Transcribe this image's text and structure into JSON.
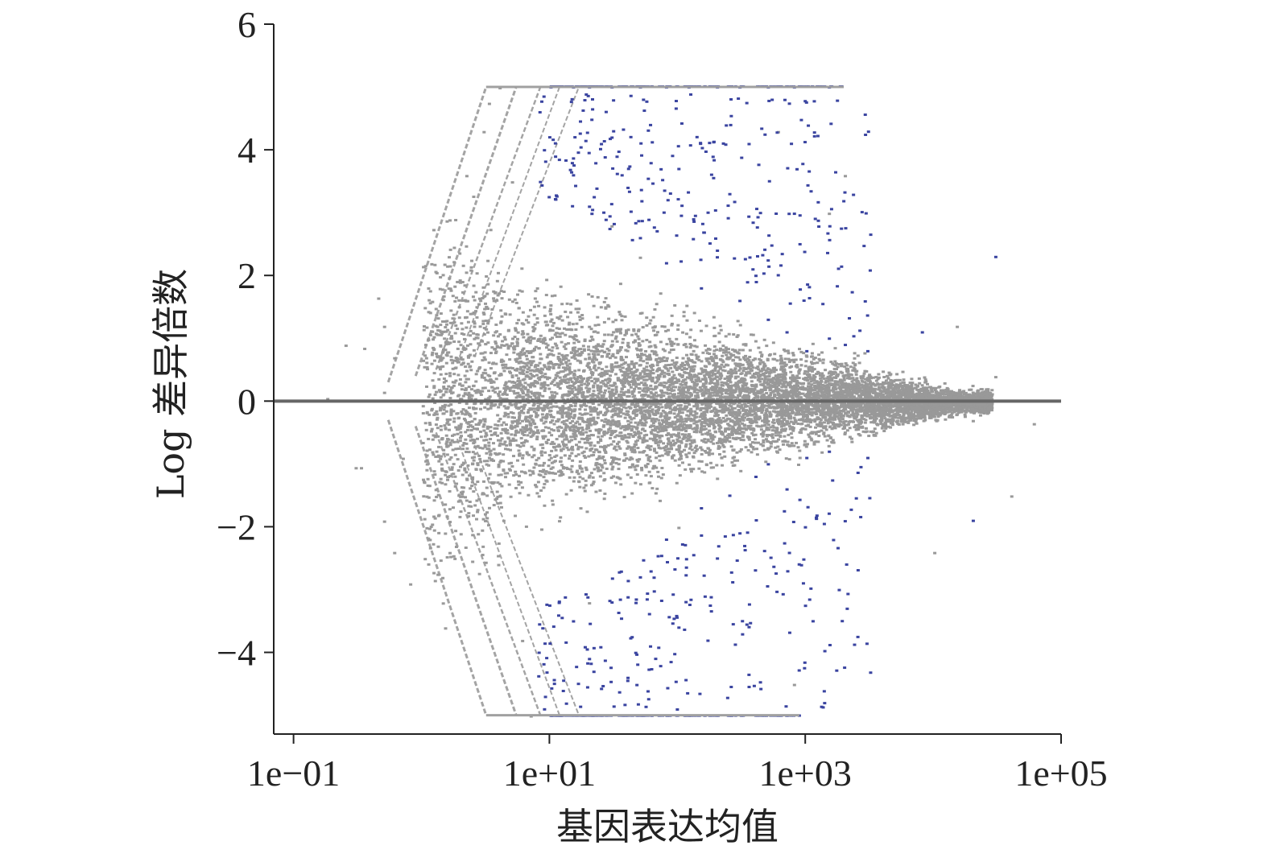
{
  "chart_data": {
    "type": "scatter",
    "title": "",
    "xlabel": "基因表达均值",
    "ylabel": "Log 差异倍数",
    "x_scale": "log10",
    "xlim": [
      0.07,
      100000
    ],
    "ylim": [
      -5.3,
      6
    ],
    "x_ticks": [
      0.1,
      10,
      1000,
      100000
    ],
    "x_tick_labels": [
      "1e−01",
      "1e+01",
      "1e+03",
      "1e+05"
    ],
    "y_ticks": [
      -4,
      -2,
      0,
      2,
      4,
      6
    ],
    "y_tick_labels": [
      "−4",
      "−2",
      "0",
      "2",
      "4",
      "6"
    ],
    "reference_line_y": 0,
    "cap_values": [
      5,
      -5
    ],
    "grid": false,
    "legend": "none",
    "colors": {
      "not_significant": "#999999",
      "significant": "#3a44a0",
      "reference_line": "#666666",
      "axis": "#222222"
    },
    "series": [
      {
        "color": "#999999",
        "points": [
          [
            0.25,
            0.9
          ],
          [
            0.35,
            0.85
          ],
          [
            0.3,
            -1.05
          ],
          [
            0.33,
            -1.05
          ],
          [
            0.45,
            1.65
          ],
          [
            0.5,
            1.2
          ],
          [
            0.6,
            0.7
          ],
          [
            0.7,
            -0.9
          ],
          [
            0.5,
            -1.9
          ],
          [
            0.6,
            -2.4
          ],
          [
            0.8,
            -2.9
          ],
          [
            1.5,
            -3.6
          ],
          [
            1.8,
            2.9
          ],
          [
            2.2,
            3.6
          ],
          [
            3.0,
            4.3
          ],
          [
            3.3,
            4.75
          ],
          [
            1.2,
            1.0
          ],
          [
            1.5,
            -1.1
          ],
          [
            2.0,
            0.8
          ],
          [
            2.5,
            -0.6
          ],
          [
            3.0,
            1.4
          ],
          [
            4.0,
            -1.3
          ],
          [
            5.0,
            0.4
          ],
          [
            6.0,
            -0.5
          ],
          [
            8.0,
            1.0
          ],
          [
            9.0,
            -0.8
          ],
          [
            12.0,
            0.3
          ],
          [
            15.0,
            -0.4
          ],
          [
            20.0,
            1.2
          ],
          [
            25.0,
            -1.0
          ],
          [
            30.0,
            0.6
          ],
          [
            40.0,
            -0.3
          ],
          [
            60.0,
            0.5
          ],
          [
            80.0,
            -0.7
          ],
          [
            100.0,
            0.2
          ],
          [
            150.0,
            -0.2
          ],
          [
            200.0,
            0.4
          ],
          [
            300.0,
            -0.5
          ],
          [
            500.0,
            0.3
          ],
          [
            700.0,
            -0.3
          ],
          [
            1000.0,
            0.2
          ],
          [
            1500.0,
            -0.2
          ],
          [
            2000.0,
            0.3
          ],
          [
            3000.0,
            -0.15
          ],
          [
            5000.0,
            0.1
          ],
          [
            8000.0,
            -0.1
          ],
          [
            12000.0,
            0.3
          ],
          [
            20000.0,
            -0.3
          ],
          [
            30000.0,
            0.4
          ],
          [
            60000.0,
            -0.35
          ],
          [
            40000.0,
            -1.5
          ],
          [
            15000.0,
            1.2
          ],
          [
            10000.0,
            -2.4
          ],
          [
            2000.0,
            3.6
          ],
          [
            1500.0,
            3.0
          ],
          [
            600.0,
            4.3
          ],
          [
            800.0,
            -4.5
          ],
          [
            4.0,
            5.0
          ],
          [
            7.0,
            -5.0
          ],
          [
            20.0,
            -3.2
          ],
          [
            30.0,
            2.8
          ],
          [
            5.0,
            3.5
          ],
          [
            6.0,
            -3.8
          ],
          [
            100.0,
            -2.0
          ],
          [
            50.0,
            2.3
          ],
          [
            0.18,
            0.05
          ],
          [
            0.5,
            0.15
          ],
          [
            2.0,
            -0.15
          ]
        ]
      },
      {
        "color": "#3a44a0",
        "points": [
          [
            10.0,
            5.0
          ],
          [
            15.0,
            5.0
          ],
          [
            20.0,
            5.0
          ],
          [
            30.0,
            5.0
          ],
          [
            50.0,
            5.0
          ],
          [
            80.0,
            5.0
          ],
          [
            120.0,
            5.0
          ],
          [
            200.0,
            5.0
          ],
          [
            300.0,
            5.0
          ],
          [
            500.0,
            5.0
          ],
          [
            800.0,
            5.0
          ],
          [
            1500.0,
            5.0
          ],
          [
            10.0,
            -5.0
          ],
          [
            15.0,
            -5.0
          ],
          [
            25.0,
            -5.0
          ],
          [
            40.0,
            -5.0
          ],
          [
            70.0,
            -5.0
          ],
          [
            120.0,
            -5.0
          ],
          [
            200.0,
            -5.0
          ],
          [
            400.0,
            -5.0
          ],
          [
            700.0,
            -5.0
          ],
          [
            15.0,
            3.6
          ],
          [
            20.0,
            3.1
          ],
          [
            30.0,
            4.2
          ],
          [
            40.0,
            3.4
          ],
          [
            50.0,
            2.6
          ],
          [
            60.0,
            4.4
          ],
          [
            80.0,
            2.2
          ],
          [
            100.0,
            3.7
          ],
          [
            150.0,
            1.8
          ],
          [
            200.0,
            2.4
          ],
          [
            250.0,
            3.3
          ],
          [
            300.0,
            1.6
          ],
          [
            400.0,
            2.0
          ],
          [
            500.0,
            1.3
          ],
          [
            700.0,
            1.1
          ],
          [
            1000.0,
            0.8
          ],
          [
            1500.0,
            1.0
          ],
          [
            2000.0,
            0.9
          ],
          [
            3000.0,
            0.8
          ],
          [
            8000.0,
            1.1
          ],
          [
            30000.0,
            2.3
          ],
          [
            15.0,
            -3.5
          ],
          [
            20.0,
            -4.1
          ],
          [
            30.0,
            -3.2
          ],
          [
            40.0,
            -4.4
          ],
          [
            50.0,
            -2.8
          ],
          [
            60.0,
            -3.9
          ],
          [
            80.0,
            -2.2
          ],
          [
            100.0,
            -3.6
          ],
          [
            150.0,
            -1.7
          ],
          [
            200.0,
            -2.5
          ],
          [
            250.0,
            -1.5
          ],
          [
            300.0,
            -2.1
          ],
          [
            400.0,
            -1.2
          ],
          [
            500.0,
            -1.0
          ],
          [
            700.0,
            -1.4
          ],
          [
            1000.0,
            -0.9
          ],
          [
            1500.0,
            -0.8
          ],
          [
            3000.0,
            -0.9
          ],
          [
            20000.0,
            -1.9
          ]
        ]
      }
    ]
  }
}
